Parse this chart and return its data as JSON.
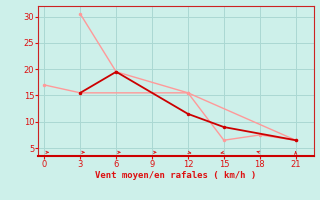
{
  "bg_color": "#cdf0ea",
  "grid_color": "#aad8d3",
  "axis_color": "#dd2222",
  "line1_x": [
    3,
    6,
    12,
    15,
    21
  ],
  "line1_y": [
    15.5,
    19.5,
    11.5,
    9.0,
    6.5
  ],
  "line1_color": "#cc0000",
  "line1_lw": 1.3,
  "line2_x": [
    0,
    3,
    12,
    15,
    18,
    21
  ],
  "line2_y": [
    17.0,
    15.5,
    15.5,
    6.5,
    7.5,
    6.5
  ],
  "line2_color": "#ff9999",
  "line2_lw": 1.0,
  "line3_x": [
    3,
    6,
    12,
    21
  ],
  "line3_y": [
    30.5,
    19.5,
    15.5,
    6.5
  ],
  "line3_color": "#ff9999",
  "line3_lw": 1.0,
  "xlabel": "Vent moyen/en rafales ( km/h )",
  "xlabel_color": "#dd1111",
  "xlabel_fontsize": 6.5,
  "xticks": [
    0,
    3,
    6,
    9,
    12,
    15,
    18,
    21
  ],
  "yticks": [
    5,
    10,
    15,
    20,
    25,
    30
  ],
  "xlim": [
    -0.5,
    22.5
  ],
  "ylim": [
    3.5,
    32
  ],
  "tick_color": "#dd1111",
  "tick_fontsize": 6,
  "marker_size": 2.5,
  "spine_color": "#cc2222",
  "bottom_spine_color": "#cc0000"
}
